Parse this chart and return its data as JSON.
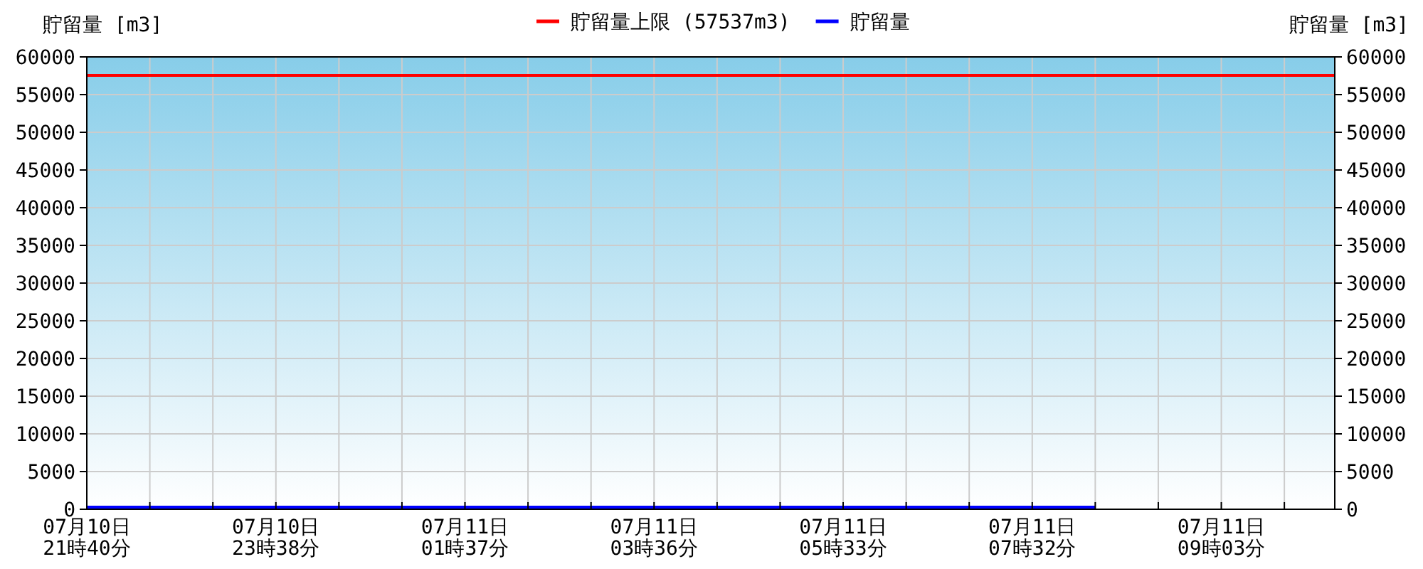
{
  "chart_data": {
    "type": "line",
    "ylabel": "貯留量 [m3]",
    "y2label": "貯留量 [m3]",
    "categories": [
      "07月10日\n21時40分",
      null,
      null,
      "07月10日\n23時38分",
      null,
      null,
      "07月11日\n01時37分",
      null,
      null,
      "07月11日\n03時36分",
      null,
      null,
      "07月11日\n05時33分",
      null,
      null,
      "07月11日\n07時32分",
      null,
      null,
      "07月11日\n09時03分",
      null
    ],
    "series": [
      {
        "name": "貯留量",
        "color": "#0000ff",
        "values": [
          200,
          200,
          200,
          200,
          200,
          200,
          200,
          200,
          200,
          200,
          200,
          200,
          200,
          200,
          200,
          200,
          200,
          null,
          null,
          null
        ]
      }
    ],
    "ref_lines": [
      {
        "axis": "y",
        "value": 57537,
        "label": "貯留量上限 (57537m3)",
        "color": "#ff0000"
      }
    ],
    "ylim": [
      0,
      60000
    ],
    "yticks": [
      0,
      5000,
      10000,
      15000,
      20000,
      25000,
      30000,
      35000,
      40000,
      45000,
      50000,
      55000,
      60000
    ],
    "y2lim": [
      0,
      60000
    ],
    "y2ticks": [
      0,
      5000,
      10000,
      15000,
      20000,
      25000,
      30000,
      35000,
      40000,
      45000,
      50000,
      55000,
      60000
    ],
    "grid": true,
    "legend": "top"
  }
}
